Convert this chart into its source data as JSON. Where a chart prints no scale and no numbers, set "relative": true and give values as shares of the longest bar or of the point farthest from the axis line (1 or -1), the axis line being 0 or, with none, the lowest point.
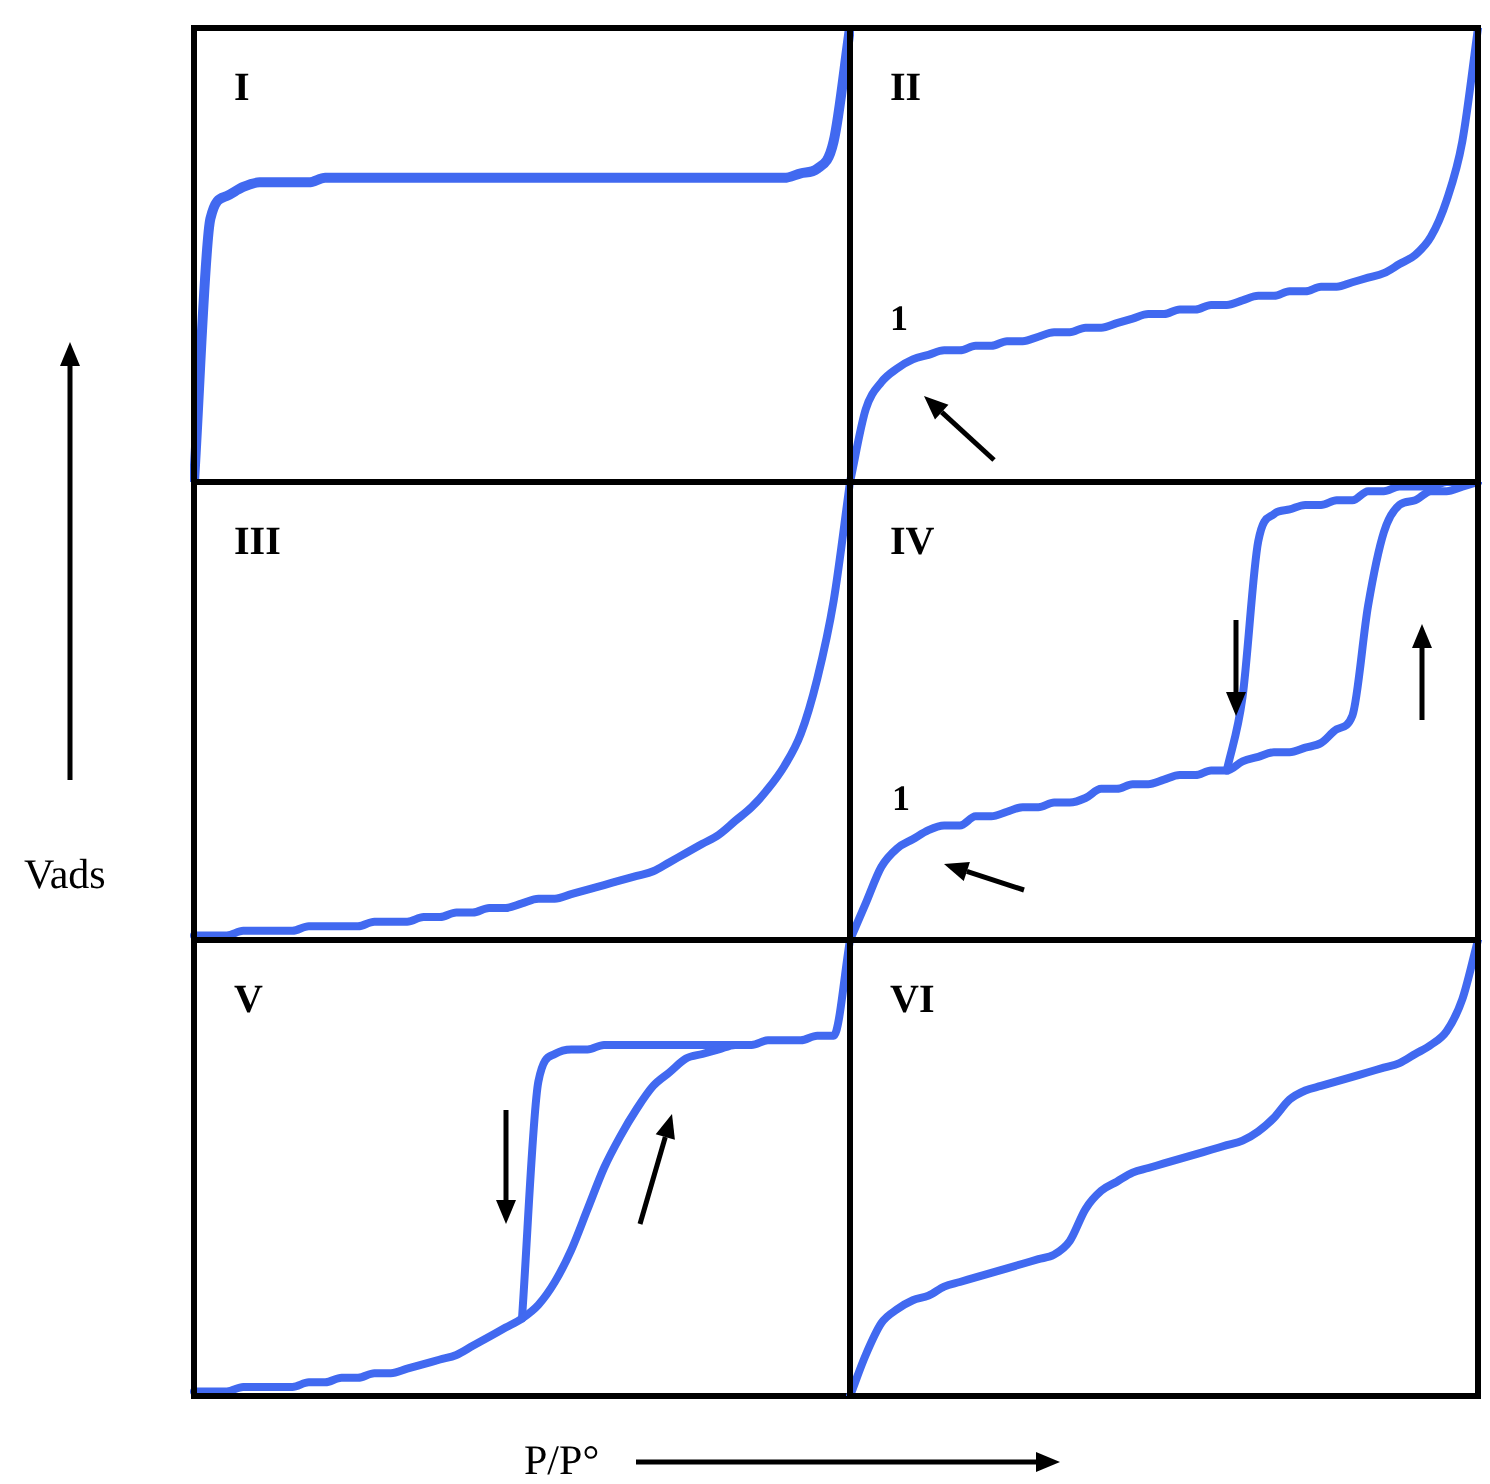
{
  "chart_data": [
    {
      "type": "line",
      "title": "I",
      "relative": true,
      "marker": "none",
      "categories": [
        null,
        null,
        null,
        null,
        null,
        null,
        null,
        null,
        null,
        null,
        null,
        null,
        null,
        null,
        null,
        null,
        null,
        null,
        null,
        null,
        null,
        null,
        null,
        null,
        null,
        null,
        null,
        null,
        null,
        null,
        null,
        null,
        null,
        null,
        null,
        null,
        null,
        null,
        null,
        null,
        null
      ],
      "color": "#4169f0",
      "values": [
        0,
        0.58,
        0.63,
        0.65,
        0.66,
        0.66,
        0.66,
        0.66,
        0.67,
        0.67,
        0.67,
        0.67,
        0.67,
        0.67,
        0.67,
        0.67,
        0.67,
        0.67,
        0.67,
        0.67,
        0.67,
        0.67,
        0.67,
        0.67,
        0.67,
        0.67,
        0.67,
        0.67,
        0.67,
        0.67,
        0.67,
        0.67,
        0.67,
        0.67,
        0.67,
        0.67,
        0.67,
        0.68,
        0.69,
        0.75,
        1
      ]
    },
    {
      "type": "line",
      "title": "II",
      "relative": true,
      "marker": "none",
      "annotations": [
        "1"
      ],
      "categories": [
        null,
        null,
        null,
        null,
        null,
        null,
        null,
        null,
        null,
        null,
        null,
        null,
        null,
        null,
        null,
        null,
        null,
        null,
        null,
        null,
        null,
        null,
        null,
        null,
        null,
        null,
        null,
        null,
        null,
        null,
        null,
        null,
        null,
        null,
        null,
        null,
        null,
        null,
        null,
        null,
        null
      ],
      "color": "#4169f0",
      "values": [
        0,
        0.16,
        0.22,
        0.25,
        0.27,
        0.28,
        0.29,
        0.29,
        0.3,
        0.3,
        0.31,
        0.31,
        0.32,
        0.33,
        0.33,
        0.34,
        0.34,
        0.35,
        0.36,
        0.37,
        0.37,
        0.38,
        0.38,
        0.39,
        0.39,
        0.4,
        0.41,
        0.41,
        0.42,
        0.42,
        0.43,
        0.43,
        0.44,
        0.45,
        0.46,
        0.48,
        0.5,
        0.54,
        0.62,
        0.75,
        1
      ]
    },
    {
      "type": "line",
      "title": "III",
      "ylabel": "Vads",
      "relative": true,
      "marker": "none",
      "categories": [
        null,
        null,
        null,
        null,
        null,
        null,
        null,
        null,
        null,
        null,
        null,
        null,
        null,
        null,
        null,
        null,
        null,
        null,
        null,
        null,
        null,
        null,
        null,
        null,
        null,
        null,
        null,
        null,
        null,
        null,
        null,
        null,
        null,
        null,
        null,
        null,
        null,
        null,
        null,
        null,
        null
      ],
      "color": "#4169f0",
      "values": [
        0.01,
        0.01,
        0.01,
        0.02,
        0.02,
        0.02,
        0.02,
        0.03,
        0.03,
        0.03,
        0.03,
        0.04,
        0.04,
        0.04,
        0.05,
        0.05,
        0.06,
        0.06,
        0.07,
        0.07,
        0.08,
        0.09,
        0.09,
        0.1,
        0.11,
        0.12,
        0.13,
        0.14,
        0.15,
        0.17,
        0.19,
        0.21,
        0.23,
        0.26,
        0.29,
        0.33,
        0.38,
        0.45,
        0.57,
        0.74,
        1
      ]
    },
    {
      "type": "line",
      "title": "IV",
      "relative": true,
      "marker": "none",
      "annotations": [
        "1"
      ],
      "categories": [
        null,
        null,
        null,
        null,
        null,
        null,
        null,
        null,
        null,
        null,
        null,
        null,
        null,
        null,
        null,
        null,
        null,
        null,
        null,
        null,
        null,
        null,
        null,
        null,
        null,
        null,
        null,
        null,
        null,
        null,
        null,
        null,
        null,
        null,
        null,
        null,
        null,
        null,
        null,
        null,
        null
      ],
      "series": [
        {
          "color": "#4169f0",
          "values": [
            0,
            0.08,
            0.16,
            0.2,
            0.22,
            0.24,
            0.25,
            0.25,
            0.27,
            0.27,
            0.28,
            0.29,
            0.29,
            0.3,
            0.3,
            0.31,
            0.33,
            0.33,
            0.34,
            0.34,
            0.35,
            0.36,
            0.36,
            0.37,
            0.37,
            0.39,
            0.4,
            0.41,
            0.41,
            0.42,
            0.43,
            0.46,
            0.49,
            0.73,
            0.89,
            0.95,
            0.96,
            0.98,
            0.98,
            0.99,
            1
          ]
        },
        {
          "color": "#4169f0",
          "values": [
            null,
            null,
            null,
            null,
            null,
            null,
            null,
            null,
            null,
            null,
            null,
            null,
            null,
            null,
            null,
            null,
            null,
            null,
            null,
            null,
            null,
            null,
            null,
            null,
            0.37,
            0.53,
            0.87,
            0.93,
            0.94,
            0.95,
            0.95,
            0.96,
            0.96,
            0.98,
            0.98,
            0.99,
            0.99,
            0.99,
            1,
            1,
            1
          ]
        }
      ]
    },
    {
      "type": "line",
      "title": "V",
      "xlabel": "P/P°",
      "relative": true,
      "marker": "none",
      "categories": [
        null,
        null,
        null,
        null,
        null,
        null,
        null,
        null,
        null,
        null,
        null,
        null,
        null,
        null,
        null,
        null,
        null,
        null,
        null,
        null,
        null,
        null,
        null,
        null,
        null,
        null,
        null,
        null,
        null,
        null,
        null,
        null,
        null,
        null,
        null,
        null,
        null,
        null,
        null,
        null,
        null
      ],
      "series": [
        {
          "color": "#4169f0",
          "values": [
            0.01,
            0.01,
            0.01,
            0.02,
            0.02,
            0.02,
            0.02,
            0.03,
            0.03,
            0.04,
            0.04,
            0.05,
            0.05,
            0.06,
            0.07,
            0.08,
            0.09,
            0.11,
            0.13,
            0.15,
            0.17,
            0.2,
            0.25,
            0.32,
            0.41,
            0.5,
            0.57,
            0.63,
            0.68,
            0.71,
            0.74,
            0.75,
            0.76,
            0.77,
            0.77,
            0.78,
            0.78,
            0.78,
            0.79,
            0.79,
            1
          ]
        },
        {
          "color": "#4169f0",
          "values": [
            null,
            null,
            null,
            null,
            null,
            null,
            null,
            null,
            null,
            null,
            null,
            null,
            null,
            null,
            null,
            null,
            null,
            null,
            null,
            null,
            0.17,
            0.69,
            0.75,
            0.76,
            0.76,
            0.77,
            0.77,
            0.77,
            0.77,
            0.77,
            0.77,
            0.77,
            0.77,
            0.77,
            null,
            null,
            null,
            null,
            null,
            null,
            null
          ]
        }
      ]
    },
    {
      "type": "line",
      "title": "VI",
      "relative": true,
      "marker": "none",
      "categories": [
        null,
        null,
        null,
        null,
        null,
        null,
        null,
        null,
        null,
        null,
        null,
        null,
        null,
        null,
        null,
        null,
        null,
        null,
        null,
        null,
        null,
        null,
        null,
        null,
        null,
        null,
        null,
        null,
        null,
        null,
        null,
        null,
        null,
        null,
        null,
        null,
        null,
        null,
        null,
        null,
        null
      ],
      "color": "#4169f0",
      "values": [
        0,
        0.09,
        0.16,
        0.19,
        0.21,
        0.22,
        0.24,
        0.25,
        0.26,
        0.27,
        0.28,
        0.29,
        0.3,
        0.31,
        0.34,
        0.41,
        0.45,
        0.47,
        0.49,
        0.5,
        0.51,
        0.52,
        0.53,
        0.54,
        0.55,
        0.56,
        0.58,
        0.61,
        0.65,
        0.67,
        0.68,
        0.69,
        0.7,
        0.71,
        0.72,
        0.73,
        0.75,
        0.77,
        0.8,
        0.87,
        1
      ]
    }
  ]
}
